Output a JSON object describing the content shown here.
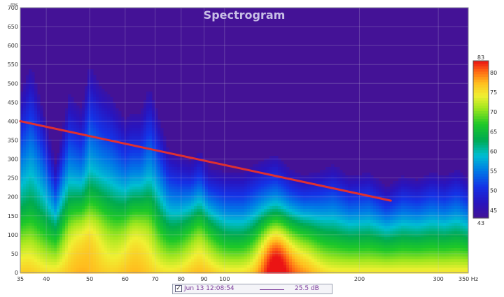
{
  "chart_data": {
    "type": "heatmap",
    "title": "Spectrogram",
    "ylabel": "ms",
    "xlabel": "Hz",
    "x_scale": "log",
    "xlim": [
      35,
      350
    ],
    "ylim": [
      0,
      700
    ],
    "x_ticks": [
      35,
      40,
      50,
      60,
      70,
      80,
      90,
      100,
      200,
      300,
      350
    ],
    "x_tick_labels": [
      "35",
      "40",
      "50",
      "60",
      "70",
      "80",
      "90",
      "100",
      "200",
      "300",
      "350 Hz"
    ],
    "y_ticks": [
      0,
      50,
      100,
      150,
      200,
      250,
      300,
      350,
      400,
      450,
      500,
      550,
      600,
      650,
      700
    ],
    "colorbar": {
      "min": 43,
      "max": 83,
      "ticks": [
        45,
        50,
        55,
        60,
        65,
        70,
        75,
        80
      ],
      "min_label": "43",
      "max_label": "83"
    },
    "decay_profile": [
      {
        "x": 35,
        "y": 480
      },
      {
        "x": 37,
        "y": 560
      },
      {
        "x": 40,
        "y": 400
      },
      {
        "x": 42,
        "y": 290
      },
      {
        "x": 45,
        "y": 480
      },
      {
        "x": 48,
        "y": 440
      },
      {
        "x": 50,
        "y": 560
      },
      {
        "x": 53,
        "y": 500
      },
      {
        "x": 56,
        "y": 470
      },
      {
        "x": 60,
        "y": 410
      },
      {
        "x": 62,
        "y": 430
      },
      {
        "x": 65,
        "y": 430
      },
      {
        "x": 68,
        "y": 500
      },
      {
        "x": 72,
        "y": 400
      },
      {
        "x": 75,
        "y": 330
      },
      {
        "x": 80,
        "y": 310
      },
      {
        "x": 84,
        "y": 300
      },
      {
        "x": 88,
        "y": 330
      },
      {
        "x": 92,
        "y": 280
      },
      {
        "x": 100,
        "y": 270
      },
      {
        "x": 110,
        "y": 270
      },
      {
        "x": 120,
        "y": 300
      },
      {
        "x": 130,
        "y": 320
      },
      {
        "x": 140,
        "y": 280
      },
      {
        "x": 150,
        "y": 260
      },
      {
        "x": 160,
        "y": 270
      },
      {
        "x": 175,
        "y": 290
      },
      {
        "x": 190,
        "y": 260
      },
      {
        "x": 210,
        "y": 270
      },
      {
        "x": 230,
        "y": 230
      },
      {
        "x": 250,
        "y": 260
      },
      {
        "x": 270,
        "y": 250
      },
      {
        "x": 290,
        "y": 270
      },
      {
        "x": 310,
        "y": 260
      },
      {
        "x": 330,
        "y": 280
      },
      {
        "x": 350,
        "y": 250
      }
    ],
    "hot_spots": [
      {
        "x": 47,
        "y": 100,
        "level": 77
      },
      {
        "x": 52,
        "y": 120,
        "level": 76
      },
      {
        "x": 62,
        "y": 100,
        "level": 76
      },
      {
        "x": 66,
        "y": 120,
        "level": 75
      },
      {
        "x": 88,
        "y": 100,
        "level": 77
      },
      {
        "x": 130,
        "y": 50,
        "level": 83
      },
      {
        "x": 150,
        "y": 60,
        "level": 76
      },
      {
        "x": 36,
        "y": 60,
        "level": 74
      }
    ],
    "trend_line": {
      "x": [
        35,
        235
      ],
      "y": [
        400,
        190
      ],
      "color": "#e03030"
    },
    "legend": [
      {
        "label": "Jun 13 12:08:54",
        "level": "25.5 dB",
        "color": "#7b3a9a",
        "checked": true
      }
    ]
  },
  "legend_row": {
    "check_glyph": "✓",
    "date_label": "Jun 13 12:08:54",
    "level_label": "25.5 dB"
  }
}
